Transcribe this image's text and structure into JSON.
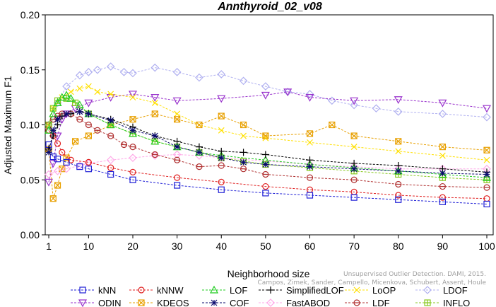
{
  "chart_data": {
    "type": "line",
    "title": "Annthyroid_02_v08",
    "xlabel": "Neighborhood size",
    "ylabel": "Adjusted Maximum F1",
    "xlim": [
      1,
      100
    ],
    "ylim": [
      0,
      0.2
    ],
    "x_ticks": [
      1,
      10,
      20,
      30,
      40,
      50,
      60,
      70,
      80,
      90,
      100
    ],
    "y_ticks": [
      "0.00",
      "0.05",
      "0.10",
      "0.15",
      "0.20"
    ],
    "grid": false,
    "legend_placement": "bottom",
    "watermark": [
      "Unsupervised Outlier Detection. DAMI, 2015.",
      "Campos, Zimek, Sander, Campello, Micenkova, Schubert, Assent, Houle"
    ],
    "series": [
      {
        "name": "kNN",
        "color": "#1f1fd6",
        "marker": "square",
        "points": [
          [
            1,
            0.082
          ],
          [
            2,
            0.071
          ],
          [
            3,
            0.069
          ],
          [
            5,
            0.066
          ],
          [
            8,
            0.062
          ],
          [
            10,
            0.06
          ],
          [
            15,
            0.055
          ],
          [
            20,
            0.05
          ],
          [
            30,
            0.045
          ],
          [
            40,
            0.041
          ],
          [
            50,
            0.038
          ],
          [
            60,
            0.036
          ],
          [
            70,
            0.034
          ],
          [
            80,
            0.032
          ],
          [
            90,
            0.03
          ],
          [
            100,
            0.028
          ]
        ]
      },
      {
        "name": "kNNW",
        "color": "#e02020",
        "marker": "circle",
        "points": [
          [
            1,
            0.095
          ],
          [
            2,
            0.09
          ],
          [
            3,
            0.083
          ],
          [
            4,
            0.075
          ],
          [
            6,
            0.068
          ],
          [
            10,
            0.066
          ],
          [
            15,
            0.061
          ],
          [
            20,
            0.057
          ],
          [
            30,
            0.052
          ],
          [
            40,
            0.048
          ],
          [
            50,
            0.044
          ],
          [
            60,
            0.041
          ],
          [
            70,
            0.039
          ],
          [
            80,
            0.036
          ],
          [
            90,
            0.034
          ],
          [
            100,
            0.033
          ]
        ]
      },
      {
        "name": "LOF",
        "color": "#22cc22",
        "marker": "triangle-up",
        "points": [
          [
            1,
            0.095
          ],
          [
            2,
            0.11
          ],
          [
            3,
            0.12
          ],
          [
            4,
            0.125
          ],
          [
            5,
            0.127
          ],
          [
            6,
            0.124
          ],
          [
            8,
            0.118
          ],
          [
            10,
            0.11
          ],
          [
            15,
            0.1
          ],
          [
            20,
            0.092
          ],
          [
            25,
            0.085
          ],
          [
            30,
            0.08
          ],
          [
            35,
            0.075
          ],
          [
            40,
            0.072
          ],
          [
            50,
            0.068
          ],
          [
            60,
            0.064
          ],
          [
            70,
            0.061
          ],
          [
            80,
            0.058
          ],
          [
            90,
            0.055
          ],
          [
            100,
            0.052
          ]
        ]
      },
      {
        "name": "SimplifiedLOF",
        "color": "#000000",
        "marker": "plus",
        "points": [
          [
            1,
            0.078
          ],
          [
            2,
            0.09
          ],
          [
            3,
            0.1
          ],
          [
            4,
            0.108
          ],
          [
            6,
            0.11
          ],
          [
            8,
            0.112
          ],
          [
            10,
            0.11
          ],
          [
            15,
            0.105
          ],
          [
            20,
            0.098
          ],
          [
            25,
            0.09
          ],
          [
            30,
            0.085
          ],
          [
            35,
            0.08
          ],
          [
            40,
            0.076
          ],
          [
            45,
            0.075
          ],
          [
            50,
            0.073
          ],
          [
            60,
            0.068
          ],
          [
            70,
            0.065
          ],
          [
            80,
            0.063
          ],
          [
            90,
            0.06
          ],
          [
            100,
            0.057
          ]
        ]
      },
      {
        "name": "LoOP",
        "color": "#ffe000",
        "marker": "x",
        "points": [
          [
            1,
            0.1
          ],
          [
            2,
            0.115
          ],
          [
            4,
            0.125
          ],
          [
            6,
            0.13
          ],
          [
            8,
            0.133
          ],
          [
            10,
            0.135
          ],
          [
            12,
            0.13
          ],
          [
            15,
            0.128
          ],
          [
            20,
            0.125
          ],
          [
            25,
            0.12
          ],
          [
            30,
            0.11
          ],
          [
            35,
            0.1
          ],
          [
            40,
            0.095
          ],
          [
            45,
            0.09
          ],
          [
            50,
            0.088
          ],
          [
            60,
            0.084
          ],
          [
            70,
            0.08
          ],
          [
            80,
            0.076
          ],
          [
            90,
            0.072
          ],
          [
            100,
            0.068
          ]
        ]
      },
      {
        "name": "LDOF",
        "color": "#b0b0f0",
        "marker": "diamond",
        "points": [
          [
            1,
            0.1
          ],
          [
            3,
            0.12
          ],
          [
            5,
            0.135
          ],
          [
            8,
            0.145
          ],
          [
            10,
            0.148
          ],
          [
            12,
            0.15
          ],
          [
            15,
            0.153
          ],
          [
            18,
            0.148
          ],
          [
            20,
            0.147
          ],
          [
            25,
            0.152
          ],
          [
            30,
            0.148
          ],
          [
            35,
            0.143
          ],
          [
            40,
            0.146
          ],
          [
            45,
            0.14
          ],
          [
            50,
            0.135
          ],
          [
            55,
            0.13
          ],
          [
            60,
            0.128
          ],
          [
            65,
            0.122
          ],
          [
            70,
            0.118
          ],
          [
            75,
            0.115
          ],
          [
            80,
            0.112
          ],
          [
            90,
            0.11
          ],
          [
            100,
            0.107
          ]
        ]
      },
      {
        "name": "ODIN",
        "color": "#9932cc",
        "marker": "triangle-down",
        "points": [
          [
            1,
            0.048
          ],
          [
            2,
            0.065
          ],
          [
            3,
            0.09
          ],
          [
            4,
            0.105
          ],
          [
            5,
            0.11
          ],
          [
            7,
            0.115
          ],
          [
            10,
            0.12
          ],
          [
            15,
            0.125
          ],
          [
            20,
            0.128
          ],
          [
            25,
            0.125
          ],
          [
            30,
            0.122
          ],
          [
            40,
            0.124
          ],
          [
            50,
            0.127
          ],
          [
            55,
            0.13
          ],
          [
            60,
            0.125
          ],
          [
            70,
            0.122
          ],
          [
            80,
            0.123
          ],
          [
            90,
            0.12
          ],
          [
            100,
            0.115
          ]
        ]
      },
      {
        "name": "KDEOS",
        "color": "#e8a000",
        "marker": "square-x",
        "points": [
          [
            1,
            0.078
          ],
          [
            2,
            0.033
          ],
          [
            3,
            0.045
          ],
          [
            4,
            0.06
          ],
          [
            5,
            0.07
          ],
          [
            7,
            0.085
          ],
          [
            10,
            0.09
          ],
          [
            15,
            0.1
          ],
          [
            20,
            0.105
          ],
          [
            25,
            0.11
          ],
          [
            30,
            0.105
          ],
          [
            35,
            0.1
          ],
          [
            40,
            0.108
          ],
          [
            45,
            0.1
          ],
          [
            50,
            0.09
          ],
          [
            60,
            0.092
          ],
          [
            65,
            0.1
          ],
          [
            70,
            0.09
          ],
          [
            80,
            0.085
          ],
          [
            90,
            0.08
          ],
          [
            100,
            0.077
          ]
        ]
      },
      {
        "name": "COF",
        "color": "#0a0a6e",
        "marker": "asterisk",
        "points": [
          [
            1,
            0.075
          ],
          [
            2,
            0.095
          ],
          [
            3,
            0.105
          ],
          [
            5,
            0.11
          ],
          [
            8,
            0.112
          ],
          [
            10,
            0.11
          ],
          [
            15,
            0.104
          ],
          [
            20,
            0.095
          ],
          [
            25,
            0.09
          ],
          [
            30,
            0.08
          ],
          [
            35,
            0.075
          ],
          [
            40,
            0.07
          ],
          [
            45,
            0.066
          ],
          [
            50,
            0.064
          ],
          [
            60,
            0.062
          ],
          [
            70,
            0.06
          ],
          [
            80,
            0.058
          ],
          [
            90,
            0.056
          ],
          [
            100,
            0.055
          ]
        ]
      },
      {
        "name": "FastABOD",
        "color": "#ffa8e8",
        "marker": "diamond",
        "points": [
          [
            1,
            0.055
          ],
          [
            3,
            0.058
          ],
          [
            5,
            0.06
          ],
          [
            8,
            0.063
          ],
          [
            10,
            0.065
          ],
          [
            15,
            0.068
          ],
          [
            20,
            0.07
          ],
          [
            25,
            0.072
          ],
          [
            30,
            0.073
          ],
          [
            35,
            0.072
          ],
          [
            40,
            0.07
          ],
          [
            50,
            0.067
          ],
          [
            60,
            0.064
          ],
          [
            70,
            0.062
          ],
          [
            80,
            0.06
          ],
          [
            90,
            0.06
          ],
          [
            100,
            0.06
          ]
        ]
      },
      {
        "name": "LDF",
        "color": "#b03030",
        "marker": "circle-dot",
        "points": [
          [
            1,
            0.1
          ],
          [
            2,
            0.105
          ],
          [
            3,
            0.108
          ],
          [
            4,
            0.11
          ],
          [
            6,
            0.11
          ],
          [
            8,
            0.105
          ],
          [
            10,
            0.1
          ],
          [
            12,
            0.095
          ],
          [
            15,
            0.09
          ],
          [
            18,
            0.082
          ],
          [
            20,
            0.08
          ],
          [
            25,
            0.073
          ],
          [
            30,
            0.068
          ],
          [
            35,
            0.062
          ],
          [
            40,
            0.063
          ],
          [
            45,
            0.06
          ],
          [
            50,
            0.055
          ],
          [
            60,
            0.052
          ],
          [
            70,
            0.05
          ],
          [
            80,
            0.046
          ],
          [
            90,
            0.044
          ],
          [
            100,
            0.043
          ]
        ]
      },
      {
        "name": "INFLO",
        "color": "#88c820",
        "marker": "square-cross",
        "points": [
          [
            1,
            0.1
          ],
          [
            2,
            0.115
          ],
          [
            3,
            0.122
          ],
          [
            5,
            0.124
          ],
          [
            7,
            0.12
          ],
          [
            10,
            0.11
          ],
          [
            15,
            0.1
          ],
          [
            20,
            0.092
          ],
          [
            25,
            0.085
          ],
          [
            30,
            0.08
          ],
          [
            35,
            0.075
          ],
          [
            40,
            0.07
          ],
          [
            45,
            0.067
          ],
          [
            50,
            0.064
          ],
          [
            60,
            0.061
          ],
          [
            70,
            0.058
          ],
          [
            80,
            0.055
          ],
          [
            90,
            0.052
          ],
          [
            100,
            0.05
          ]
        ]
      }
    ]
  }
}
